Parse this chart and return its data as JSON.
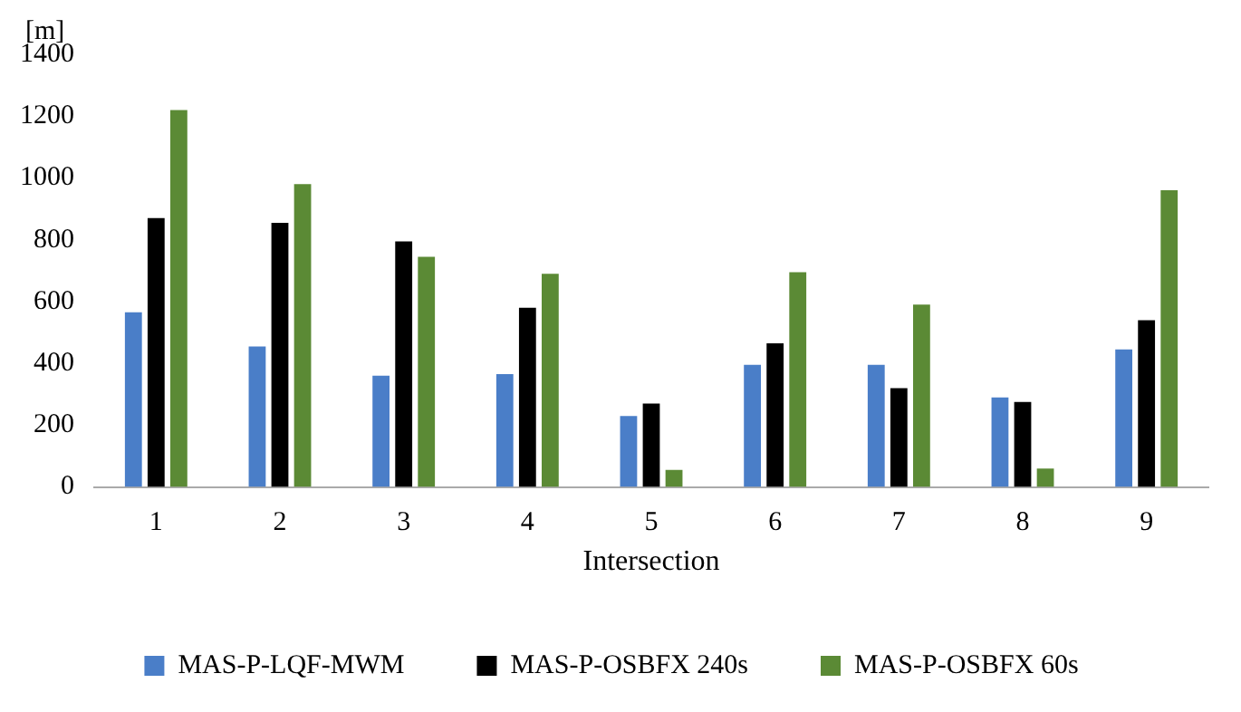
{
  "chart_data": {
    "type": "bar",
    "xlabel": "Intersection",
    "ylabel": "[m]",
    "categories": [
      "1",
      "2",
      "3",
      "4",
      "5",
      "6",
      "7",
      "8",
      "9"
    ],
    "series": [
      {
        "name": "MAS-P-LQF-MWM",
        "color": "#4a7ec8",
        "values": [
          565,
          455,
          360,
          365,
          230,
          395,
          395,
          290,
          445
        ]
      },
      {
        "name": "MAS-P-OSBFX 240s",
        "color": "#000000",
        "values": [
          870,
          855,
          795,
          580,
          270,
          465,
          320,
          275,
          540
        ]
      },
      {
        "name": "MAS-P-OSBFX 60s",
        "color": "#5b8a35",
        "values": [
          1220,
          980,
          745,
          690,
          55,
          695,
          590,
          60,
          960
        ]
      }
    ],
    "ylim": [
      0,
      1400
    ],
    "yticks": [
      0,
      200,
      400,
      600,
      800,
      1000,
      1200,
      1400
    ],
    "grid": false,
    "legend": "bottom"
  }
}
